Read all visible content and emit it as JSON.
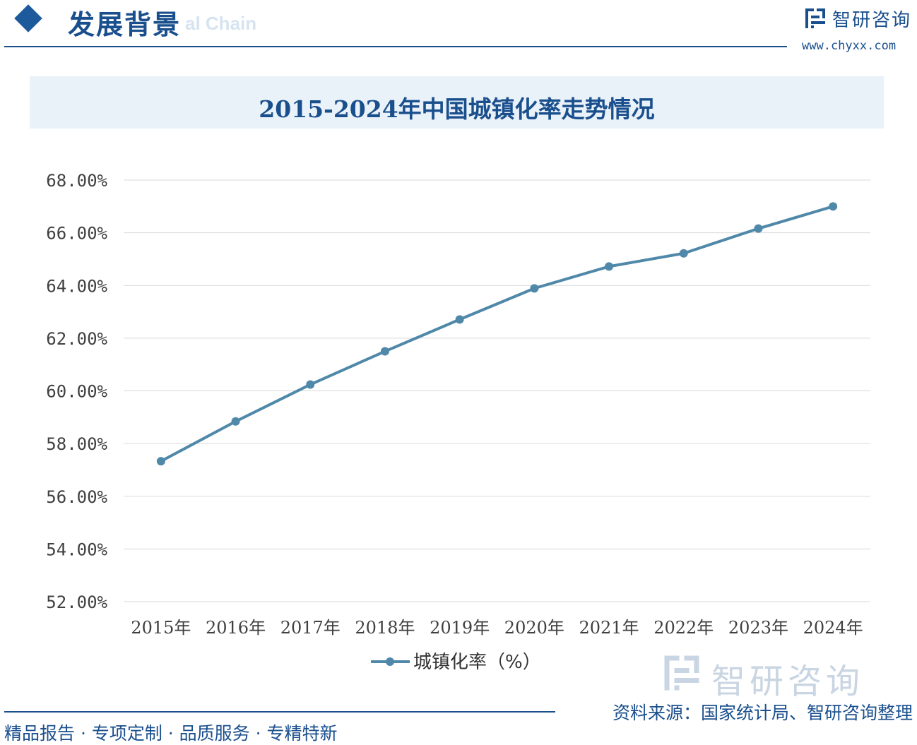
{
  "header": {
    "section_title": "发展背景",
    "ghost_text": "al Chain",
    "brand_name": "智研咨询",
    "brand_url": "www.chyxx.com"
  },
  "watermark": {
    "brand_name": "智研咨询"
  },
  "footer": {
    "slogan": "精品报告 · 专项定制 · 品质服务 · 专精特新",
    "source": "资料来源：国家统计局、智研咨询整理"
  },
  "colors": {
    "primary": "#1a4f8d",
    "series": "#4f88a8",
    "band": "#e9f1f9",
    "grid": "#d9d9d9"
  },
  "chart_data": {
    "type": "line",
    "title": "2015-2024年中国城镇化率走势情况",
    "categories": [
      "2015年",
      "2016年",
      "2017年",
      "2018年",
      "2019年",
      "2020年",
      "2021年",
      "2022年",
      "2023年",
      "2024年"
    ],
    "series": [
      {
        "name": "城镇化率（%）",
        "values": [
          57.33,
          58.84,
          60.24,
          61.5,
          62.71,
          63.89,
          64.72,
          65.22,
          66.16,
          67.0
        ]
      }
    ],
    "ylim": [
      52,
      68
    ],
    "yticks": [
      52,
      54,
      56,
      58,
      60,
      62,
      64,
      66,
      68
    ],
    "ytick_labels": [
      "52.00%",
      "54.00%",
      "56.00%",
      "58.00%",
      "60.00%",
      "62.00%",
      "64.00%",
      "66.00%",
      "68.00%"
    ],
    "grid": true,
    "legend_position": "bottom-center",
    "xlabel": "",
    "ylabel": ""
  }
}
